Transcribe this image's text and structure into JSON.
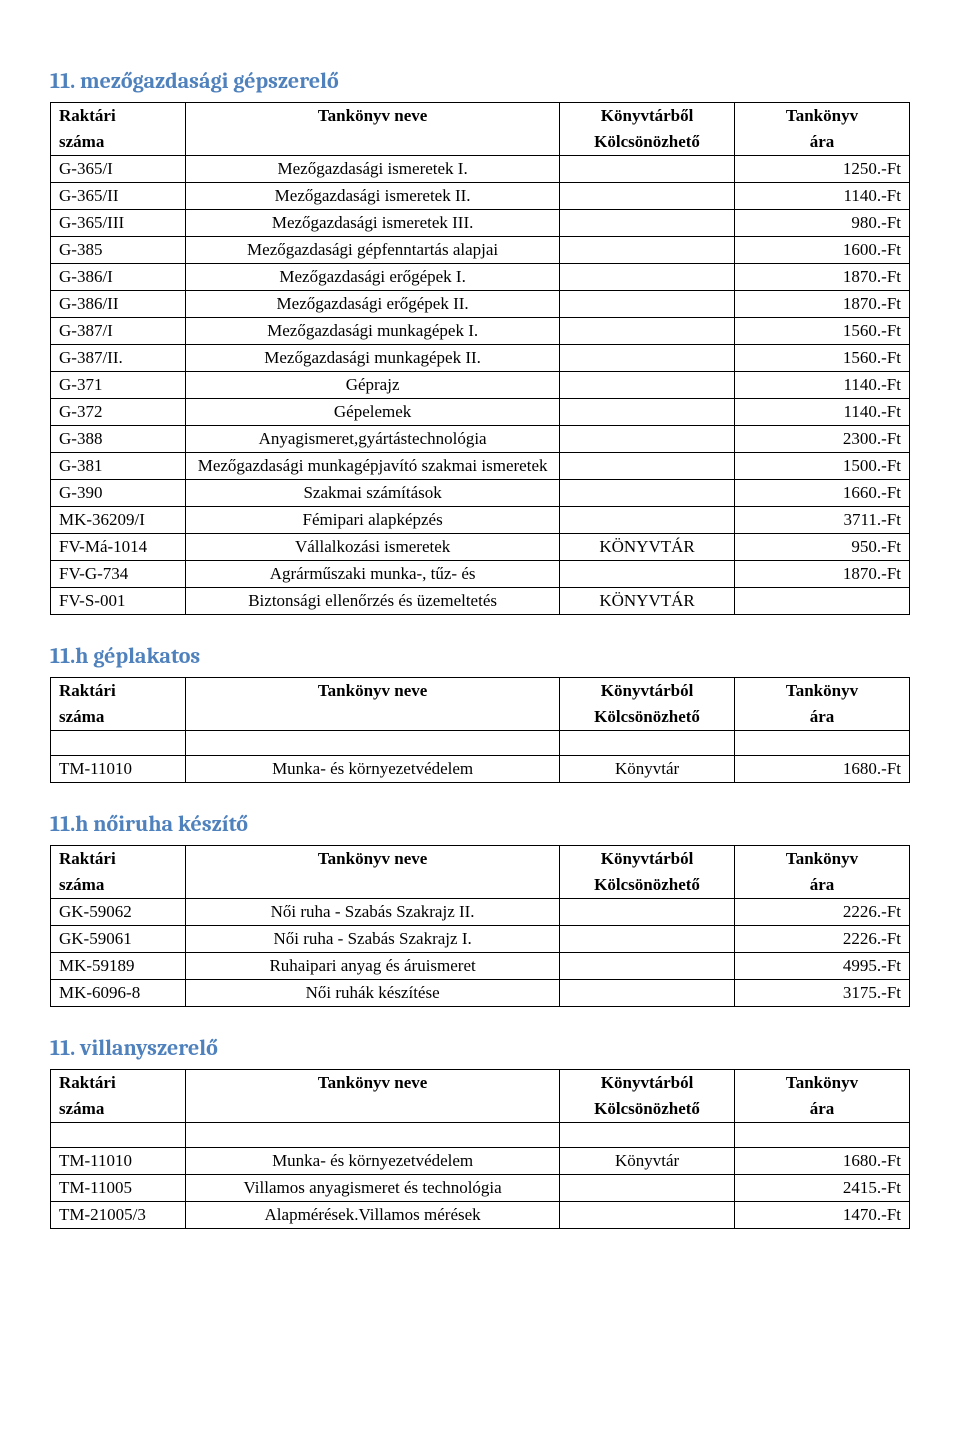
{
  "colors": {
    "heading": "#4f81bd",
    "text": "#000000",
    "border": "#000000",
    "background": "#ffffff"
  },
  "header_labels": {
    "code1": "Raktári",
    "code2": "száma",
    "name": "Tankönyv neve",
    "lib1_a": "Könyvtárből",
    "lib1_b": "Könyvtárból",
    "lib2": "Kölcsönözhető",
    "price1": "Tankönyv",
    "price2": "ára"
  },
  "sections": [
    {
      "title": "11. mezőgazdasági gépszerelő",
      "lib_header": "Könyvtárből",
      "spacer_after_header": false,
      "rows": [
        {
          "code": "G-365/I",
          "name": "Mezőgazdasági ismeretek I.",
          "lib": "",
          "price": "1250.-Ft"
        },
        {
          "code": "G-365/II",
          "name": "Mezőgazdasági ismeretek II.",
          "lib": "",
          "price": "1140.-Ft"
        },
        {
          "code": "G-365/III",
          "name": "Mezőgazdasági ismeretek III.",
          "lib": "",
          "price": "980.-Ft"
        },
        {
          "code": "G-385",
          "name": "Mezőgazdasági gépfenntartás alapjai",
          "lib": "",
          "price": "1600.-Ft"
        },
        {
          "code": "G-386/I",
          "name": "Mezőgazdasági erőgépek I.",
          "lib": "",
          "price": "1870.-Ft"
        },
        {
          "code": "G-386/II",
          "name": "Mezőgazdasági erőgépek II.",
          "lib": "",
          "price": "1870.-Ft"
        },
        {
          "code": "G-387/I",
          "name": "Mezőgazdasági munkagépek I.",
          "lib": "",
          "price": "1560.-Ft"
        },
        {
          "code": "G-387/II.",
          "name": "Mezőgazdasági munkagépek II.",
          "lib": "",
          "price": "1560.-Ft"
        },
        {
          "code": "G-371",
          "name": "Géprajz",
          "lib": "",
          "price": "1140.-Ft"
        },
        {
          "code": "G-372",
          "name": "Gépelemek",
          "lib": "",
          "price": "1140.-Ft"
        },
        {
          "code": "G-388",
          "name": "Anyagismeret,gyártástechnológia",
          "lib": "",
          "price": "2300.-Ft"
        },
        {
          "code": "G-381",
          "name": "Mezőgazdasági munkagépjavító szakmai ismeretek",
          "lib": "",
          "price": "1500.-Ft"
        },
        {
          "code": "G-390",
          "name": "Szakmai számítások",
          "lib": "",
          "price": "1660.-Ft"
        },
        {
          "code": "MK-36209/I",
          "name": "Fémipari alapképzés",
          "lib": "",
          "price": "3711.-Ft"
        },
        {
          "code": "FV-Má-1014",
          "name": "Vállalkozási ismeretek",
          "lib": "KÖNYVTÁR",
          "price": "950.-Ft"
        },
        {
          "code": "FV-G-734",
          "name": "Agrárműszaki munka-, tűz- és",
          "lib": "",
          "price": "1870.-Ft"
        },
        {
          "code": "FV-S-001",
          "name": "Biztonsági ellenőrzés és üzemeltetés",
          "lib": "KÖNYVTÁR",
          "price": ""
        }
      ]
    },
    {
      "title": "11.h géplakatos",
      "lib_header": "Könyvtárból",
      "spacer_after_header": true,
      "rows": [
        {
          "code": "TM-11010",
          "name": "Munka- és környezetvédelem",
          "lib": "Könyvtár",
          "price": "1680.-Ft"
        }
      ]
    },
    {
      "title": "11.h nőiruha készítő",
      "lib_header": "Könyvtárból",
      "spacer_after_header": false,
      "rows": [
        {
          "code": "GK-59062",
          "name": "Női ruha - Szabás Szakrajz II.",
          "lib": "",
          "price": "2226.-Ft"
        },
        {
          "code": "GK-59061",
          "name": "Női ruha - Szabás Szakrajz I.",
          "lib": "",
          "price": "2226.-Ft"
        },
        {
          "code": "MK-59189",
          "name": "Ruhaipari anyag és áruismeret",
          "lib": "",
          "price": "4995.-Ft"
        },
        {
          "code": "MK-6096-8",
          "name": "Női ruhák készítése",
          "lib": "",
          "price": "3175.-Ft"
        }
      ]
    },
    {
      "title": "11. villanyszerelő",
      "lib_header": "Könyvtárból",
      "spacer_after_header": true,
      "rows": [
        {
          "code": "TM-11010",
          "name": "Munka- és környezetvédelem",
          "lib": "Könyvtár",
          "price": "1680.-Ft"
        },
        {
          "code": "TM-11005",
          "name": "Villamos anyagismeret és technológia",
          "lib": "",
          "price": "2415.-Ft"
        },
        {
          "code": "TM-21005/3",
          "name": "Alapmérések.Villamos mérések",
          "lib": "",
          "price": "1470.-Ft"
        }
      ]
    }
  ]
}
